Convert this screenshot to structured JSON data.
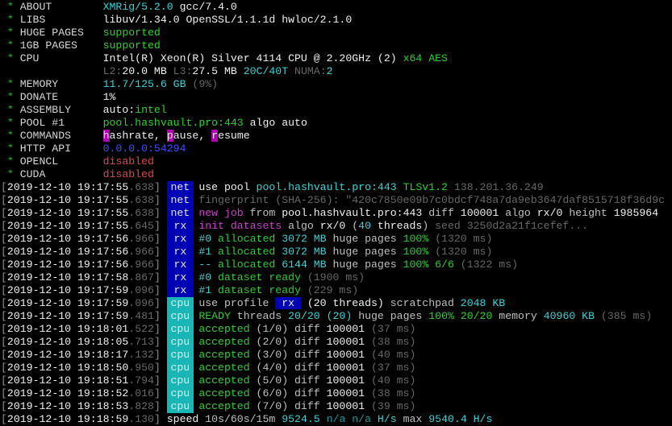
{
  "header": [
    {
      "label": "ABOUT",
      "star": "*",
      "value": [
        {
          "t": "XMRig/5.2.0",
          "c": "c"
        },
        {
          "t": " gcc/7.4.0",
          "c": "W"
        }
      ]
    },
    {
      "label": "LIBS",
      "star": "*",
      "value": [
        {
          "t": "libuv/1.34.0 OpenSSL/1.1.1d hwloc/2.1.0",
          "c": "W"
        }
      ]
    },
    {
      "label": "HUGE PAGES",
      "star": "*",
      "value": [
        {
          "t": "supported",
          "c": "g"
        }
      ]
    },
    {
      "label": "1GB PAGES",
      "star": "*",
      "value": [
        {
          "t": "supported",
          "c": "g"
        }
      ]
    },
    {
      "label": "CPU",
      "star": "*",
      "value": [
        {
          "t": "Intel(R) Xeon(R) Silver 4114 CPU @ 2.20GHz",
          "c": "W"
        },
        {
          "t": " (2)",
          "c": "W"
        },
        {
          "t": " x64 AES",
          "c": "g"
        }
      ]
    },
    {
      "label": "",
      "star": "",
      "value": [
        {
          "t": "L2:",
          "c": "dg"
        },
        {
          "t": "20.0 MB",
          "c": "W"
        },
        {
          "t": " L3:",
          "c": "dg"
        },
        {
          "t": "27.5 MB",
          "c": "W"
        },
        {
          "t": " 20C/40T",
          "c": "c"
        },
        {
          "t": " NUMA:",
          "c": "dg"
        },
        {
          "t": "2",
          "c": "c"
        }
      ]
    },
    {
      "label": "MEMORY",
      "star": "*",
      "value": [
        {
          "t": "11.7/125.6 GB",
          "c": "c"
        },
        {
          "t": " (9%)",
          "c": "dg"
        }
      ]
    },
    {
      "label": "DONATE",
      "star": "*",
      "value": [
        {
          "t": "1%",
          "c": "W"
        }
      ]
    },
    {
      "label": "ASSEMBLY",
      "star": "*",
      "value": [
        {
          "t": "auto:",
          "c": "W"
        },
        {
          "t": "intel",
          "c": "g"
        }
      ]
    },
    {
      "label": "POOL #1",
      "star": "*",
      "value": [
        {
          "t": "pool.hashvault.pro:443",
          "c": "g"
        },
        {
          "t": " algo auto",
          "c": "W"
        }
      ]
    },
    {
      "label": "COMMANDS",
      "star": "*",
      "value": [
        {
          "t": "h",
          "c": "hl"
        },
        {
          "t": "ashrate, ",
          "c": "W"
        },
        {
          "t": "p",
          "c": "hl"
        },
        {
          "t": "ause, ",
          "c": "W"
        },
        {
          "t": "r",
          "c": "hl"
        },
        {
          "t": "esume",
          "c": "W"
        }
      ]
    },
    {
      "label": "HTTP API",
      "star": "*",
      "value": [
        {
          "t": "0.0.0.0:54294",
          "c": "b"
        }
      ]
    },
    {
      "label": "OPENCL",
      "star": "*",
      "value": [
        {
          "t": "disabled",
          "c": "r"
        }
      ]
    },
    {
      "label": "CUDA",
      "star": "*",
      "value": [
        {
          "t": "disabled",
          "c": "r"
        }
      ]
    }
  ],
  "log": [
    {
      "ts": "2019-12-10 19:17:55",
      "ms": ".638",
      "tag": "net",
      "msg": [
        {
          "t": "use pool ",
          "c": "W"
        },
        {
          "t": "pool.hashvault.pro:443",
          "c": "c"
        },
        {
          "t": " TLSv1.2",
          "c": "g"
        },
        {
          "t": " 138.201.36.249",
          "c": "dg"
        }
      ]
    },
    {
      "ts": "2019-12-10 19:17:55",
      "ms": ".638",
      "tag": "net",
      "msg": [
        {
          "t": "fingerprint (SHA-256): \"420c7850e09b7c0bdcf748a7da9eb3647daf8515718f36d9c",
          "c": "dg"
        }
      ]
    },
    {
      "ts": "2019-12-10 19:17:55",
      "ms": ".638",
      "tag": "net",
      "msg": [
        {
          "t": "new job",
          "c": "m"
        },
        {
          "t": " from ",
          "c": "w"
        },
        {
          "t": "pool.hashvault.pro:443",
          "c": "W"
        },
        {
          "t": " diff ",
          "c": "w"
        },
        {
          "t": "100001",
          "c": "W"
        },
        {
          "t": " algo ",
          "c": "w"
        },
        {
          "t": "rx/0",
          "c": "W"
        },
        {
          "t": " height ",
          "c": "w"
        },
        {
          "t": "1985964",
          "c": "W"
        }
      ]
    },
    {
      "ts": "2019-12-10 19:17:55",
      "ms": ".645",
      "tag": "rx",
      "msg": [
        {
          "t": "init datasets",
          "c": "m"
        },
        {
          "t": " algo ",
          "c": "w"
        },
        {
          "t": "rx/0",
          "c": "W"
        },
        {
          "t": " (",
          "c": "w"
        },
        {
          "t": "40",
          "c": "c"
        },
        {
          "t": " threads",
          "c": "W"
        },
        {
          "t": ")",
          "c": "w"
        },
        {
          "t": " seed 3250d2a21f1cefef...",
          "c": "dg"
        }
      ]
    },
    {
      "ts": "2019-12-10 19:17:56",
      "ms": ".966",
      "tag": "rx",
      "msg": [
        {
          "t": "#0",
          "c": "c"
        },
        {
          "t": " allocated ",
          "c": "g"
        },
        {
          "t": "3072 MB",
          "c": "c"
        },
        {
          "t": " huge pages ",
          "c": "w"
        },
        {
          "t": "100%",
          "c": "g"
        },
        {
          "t": " (1320 ms)",
          "c": "dg"
        }
      ]
    },
    {
      "ts": "2019-12-10 19:17:56",
      "ms": ".966",
      "tag": "rx",
      "msg": [
        {
          "t": "#1",
          "c": "c"
        },
        {
          "t": " allocated ",
          "c": "g"
        },
        {
          "t": "3072 MB",
          "c": "c"
        },
        {
          "t": " huge pages ",
          "c": "w"
        },
        {
          "t": "100%",
          "c": "g"
        },
        {
          "t": " (1320 ms)",
          "c": "dg"
        }
      ]
    },
    {
      "ts": "2019-12-10 19:17:56",
      "ms": ".966",
      "tag": "rx",
      "msg": [
        {
          "t": "--",
          "c": "c"
        },
        {
          "t": " allocated ",
          "c": "g"
        },
        {
          "t": "6144 MB",
          "c": "c"
        },
        {
          "t": " huge pages ",
          "c": "w"
        },
        {
          "t": "100% 6/6",
          "c": "g"
        },
        {
          "t": " (1322 ms)",
          "c": "dg"
        }
      ]
    },
    {
      "ts": "2019-12-10 19:17:58",
      "ms": ".867",
      "tag": "rx",
      "msg": [
        {
          "t": "#0",
          "c": "c"
        },
        {
          "t": " dataset ready",
          "c": "g"
        },
        {
          "t": " (1900 ms)",
          "c": "dg"
        }
      ]
    },
    {
      "ts": "2019-12-10 19:17:59",
      "ms": ".096",
      "tag": "rx",
      "msg": [
        {
          "t": "#1",
          "c": "c"
        },
        {
          "t": " dataset ready",
          "c": "g"
        },
        {
          "t": " (229 ms)",
          "c": "dg"
        }
      ]
    },
    {
      "ts": "2019-12-10 19:17:59",
      "ms": ".096",
      "tag": "cpu",
      "msg": [
        {
          "t": "use profile ",
          "c": "w"
        },
        {
          "t": " rx ",
          "c": "hlb"
        },
        {
          "t": " (20 threads)",
          "c": "W"
        },
        {
          "t": " scratchpad ",
          "c": "w"
        },
        {
          "t": "2048 KB",
          "c": "c"
        }
      ]
    },
    {
      "ts": "2019-12-10 19:17:59",
      "ms": ".481",
      "tag": "cpu",
      "msg": [
        {
          "t": "READY",
          "c": "g"
        },
        {
          "t": " threads ",
          "c": "w"
        },
        {
          "t": "20/20",
          "c": "c"
        },
        {
          "t": " (20)",
          "c": "c"
        },
        {
          "t": " huge pages ",
          "c": "w"
        },
        {
          "t": "100%",
          "c": "g"
        },
        {
          "t": " 20/20",
          "c": "g"
        },
        {
          "t": " memory ",
          "c": "w"
        },
        {
          "t": "40960 KB",
          "c": "c"
        },
        {
          "t": " (385 ms)",
          "c": "dg"
        }
      ]
    },
    {
      "ts": "2019-12-10 19:18:01",
      "ms": ".522",
      "tag": "cpu",
      "msg": [
        {
          "t": "accepted",
          "c": "g"
        },
        {
          "t": " (1/0) diff ",
          "c": "w"
        },
        {
          "t": "100001",
          "c": "W"
        },
        {
          "t": " (37 ms)",
          "c": "dg"
        }
      ]
    },
    {
      "ts": "2019-12-10 19:18:05",
      "ms": ".713",
      "tag": "cpu",
      "msg": [
        {
          "t": "accepted",
          "c": "g"
        },
        {
          "t": " (2/0) diff ",
          "c": "w"
        },
        {
          "t": "100001",
          "c": "W"
        },
        {
          "t": " (38 ms)",
          "c": "dg"
        }
      ]
    },
    {
      "ts": "2019-12-10 19:18:17",
      "ms": ".132",
      "tag": "cpu",
      "msg": [
        {
          "t": "accepted",
          "c": "g"
        },
        {
          "t": " (3/0) diff ",
          "c": "w"
        },
        {
          "t": "100001",
          "c": "W"
        },
        {
          "t": " (40 ms)",
          "c": "dg"
        }
      ]
    },
    {
      "ts": "2019-12-10 19:18:50",
      "ms": ".950",
      "tag": "cpu",
      "msg": [
        {
          "t": "accepted",
          "c": "g"
        },
        {
          "t": " (4/0) diff ",
          "c": "w"
        },
        {
          "t": "100001",
          "c": "W"
        },
        {
          "t": " (37 ms)",
          "c": "dg"
        }
      ]
    },
    {
      "ts": "2019-12-10 19:18:51",
      "ms": ".794",
      "tag": "cpu",
      "msg": [
        {
          "t": "accepted",
          "c": "g"
        },
        {
          "t": " (5/0) diff ",
          "c": "w"
        },
        {
          "t": "100001",
          "c": "W"
        },
        {
          "t": " (40 ms)",
          "c": "dg"
        }
      ]
    },
    {
      "ts": "2019-12-10 19:18:52",
      "ms": ".016",
      "tag": "cpu",
      "msg": [
        {
          "t": "accepted",
          "c": "g"
        },
        {
          "t": " (6/0) diff ",
          "c": "w"
        },
        {
          "t": "100001",
          "c": "W"
        },
        {
          "t": " (38 ms)",
          "c": "dg"
        }
      ]
    },
    {
      "ts": "2019-12-10 19:18:53",
      "ms": ".828",
      "tag": "cpu",
      "msg": [
        {
          "t": "accepted",
          "c": "g"
        },
        {
          "t": " (7/0) diff ",
          "c": "w"
        },
        {
          "t": "100001",
          "c": "W"
        },
        {
          "t": " (39 ms)",
          "c": "dg"
        }
      ]
    },
    {
      "ts": "2019-12-10 19:18:59",
      "ms": ".130",
      "tag": "",
      "msg": [
        {
          "t": "speed",
          "c": "W"
        },
        {
          "t": " 10s/60s/15m ",
          "c": "w"
        },
        {
          "t": "9524.5",
          "c": "c"
        },
        {
          "t": " n/a n/a",
          "c": "dc"
        },
        {
          "t": " H/s",
          "c": "c"
        },
        {
          "t": " max ",
          "c": "w"
        },
        {
          "t": "9540.4 H/s",
          "c": "c"
        }
      ]
    }
  ]
}
